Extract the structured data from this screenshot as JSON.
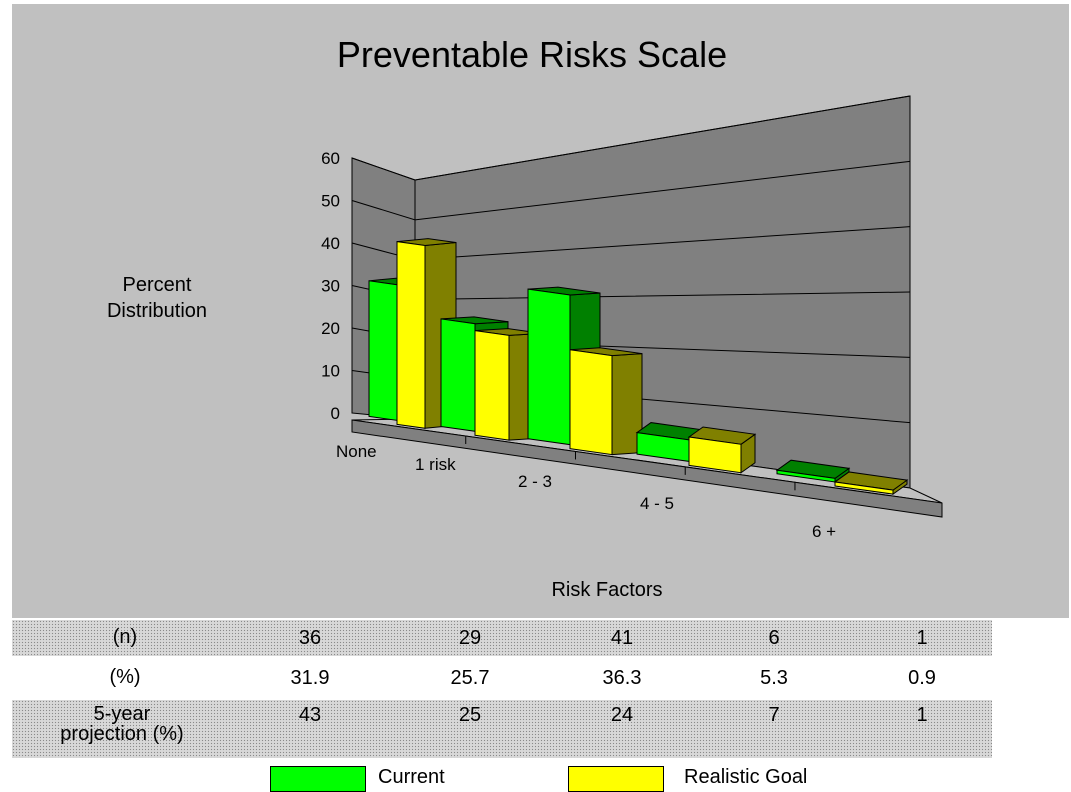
{
  "chart_data": {
    "type": "bar",
    "title": "Preventable Risks Scale",
    "ylabel": "Percent\nDistribution",
    "xlabel": "Risk Factors",
    "categories": [
      "None",
      "1 risk",
      "2 - 3",
      "4 - 5",
      "6 +"
    ],
    "yticks": [
      "0",
      "10",
      "20",
      "30",
      "40",
      "50",
      "60"
    ],
    "ylim": [
      0,
      60
    ],
    "grid": true,
    "series": [
      {
        "name": "Current",
        "values": [
          31.9,
          25.7,
          36.3,
          5.3,
          0.9
        ],
        "color": "#00ff00",
        "side_color": "#008000"
      },
      {
        "name": "Realistic Goal",
        "values": [
          43,
          25,
          24,
          7,
          1
        ],
        "color": "#ffff00",
        "side_color": "#808000"
      }
    ],
    "legend_position": "bottom"
  },
  "table": {
    "rows": [
      {
        "label": "(n)",
        "values": [
          "36",
          "29",
          "41",
          "6",
          "1"
        ]
      },
      {
        "label": "(%)",
        "values": [
          "31.9",
          "25.7",
          "36.3",
          "5.3",
          "0.9"
        ]
      },
      {
        "label": "5-year\nprojection (%)",
        "values": [
          "43",
          "25",
          "24",
          "7",
          "1"
        ]
      }
    ]
  },
  "legend": {
    "current_label": "Current",
    "goal_label": "Realistic Goal"
  },
  "colors": {
    "panel": "#c0c0c0",
    "wall": "#808080",
    "floor": "#c0c0c0",
    "grid": "#000000"
  }
}
